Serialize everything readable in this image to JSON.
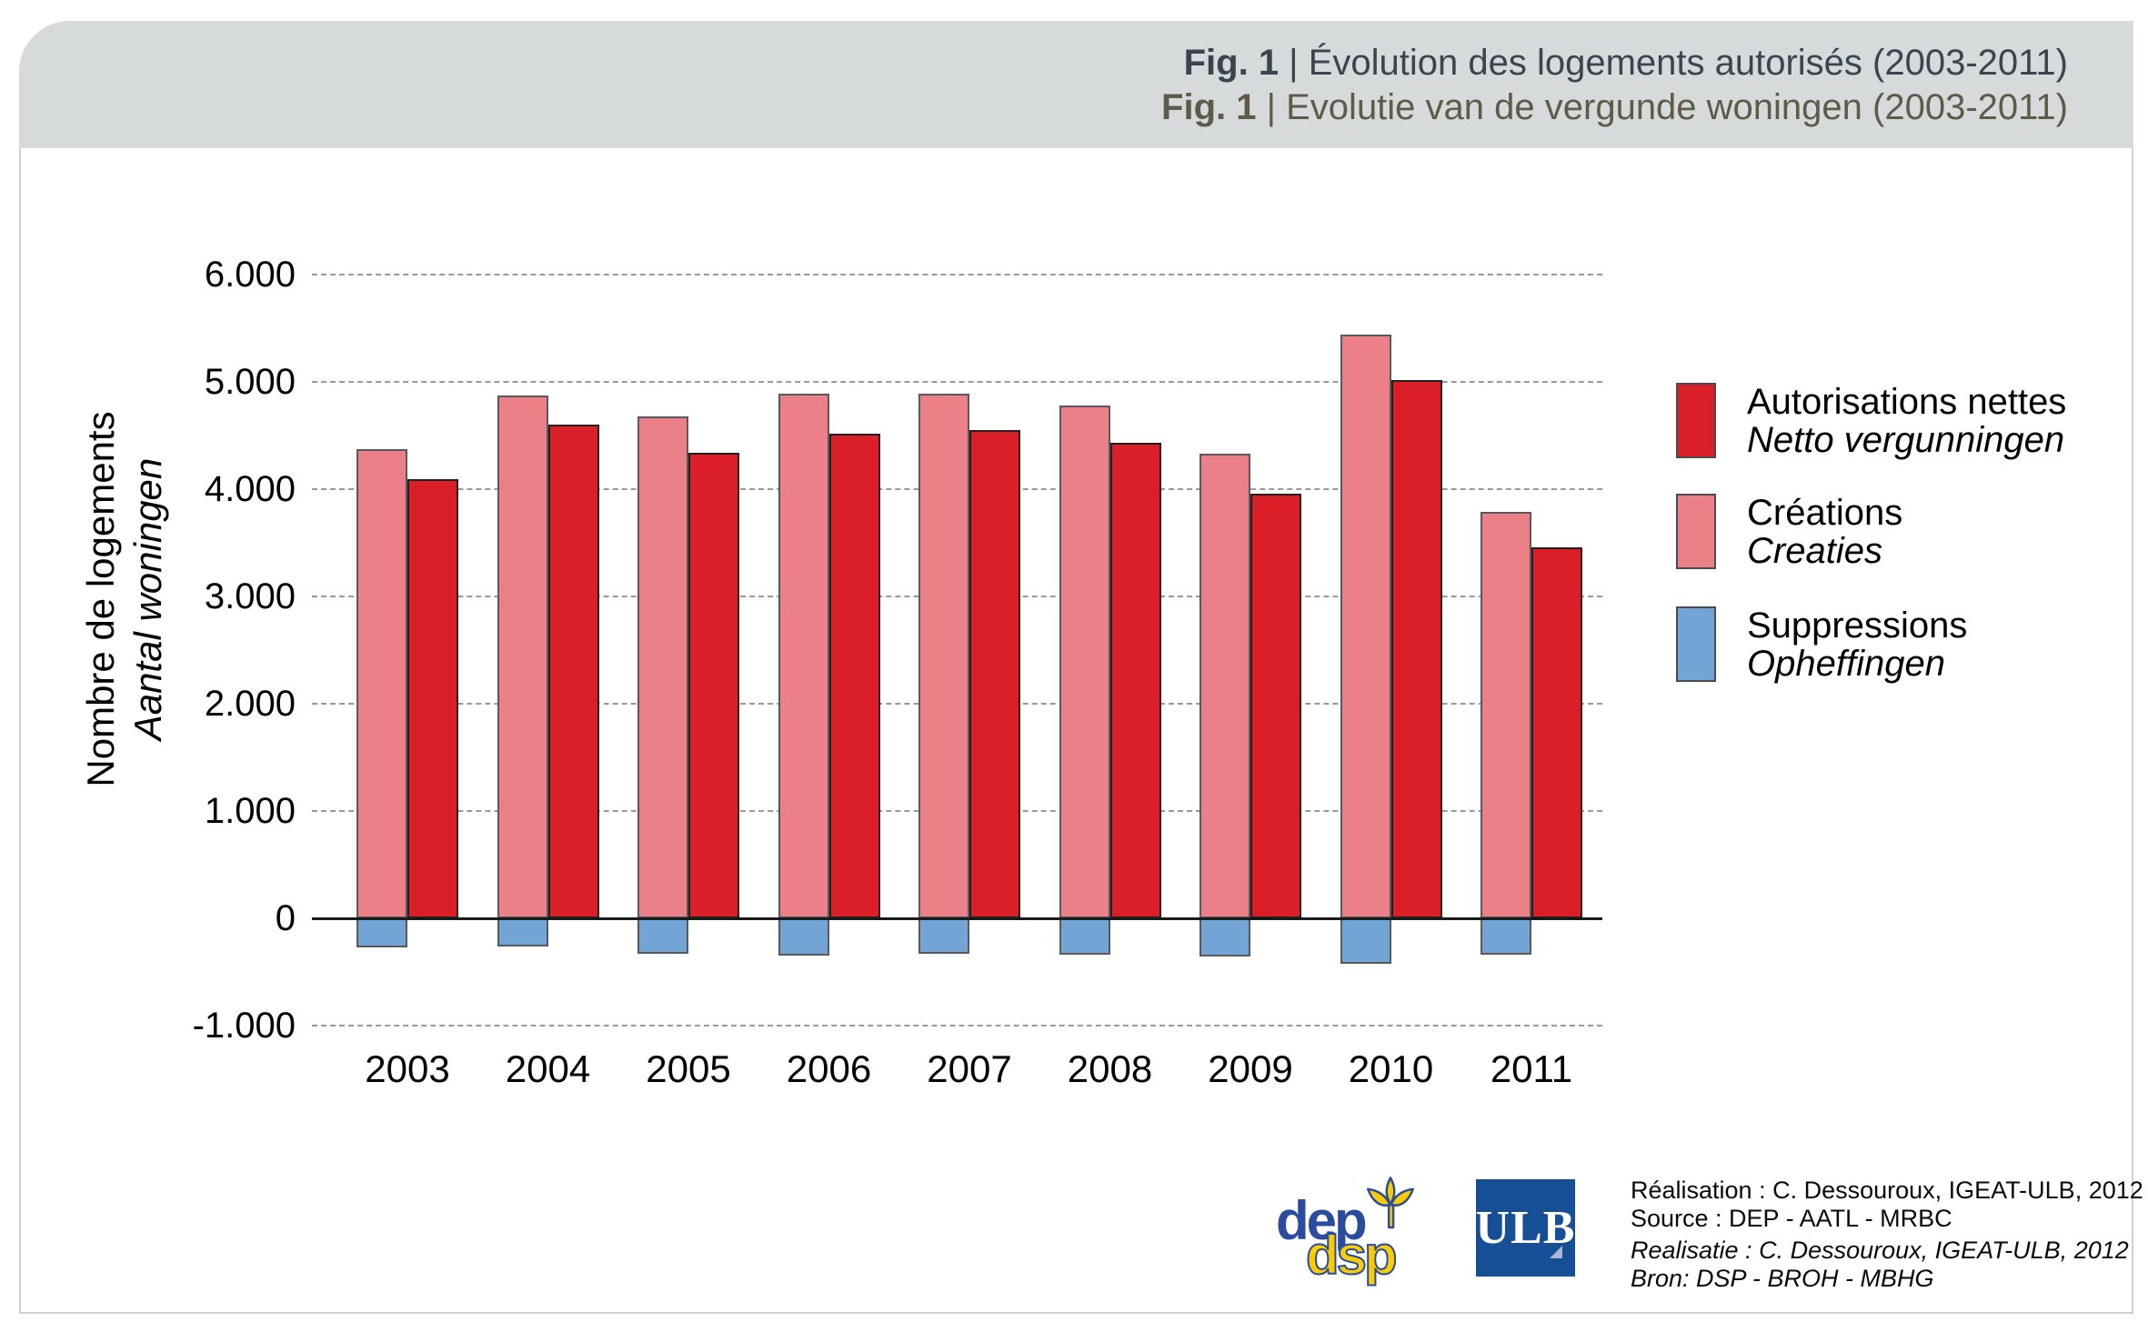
{
  "header": {
    "fig_label": "Fig. 1",
    "divider": " | ",
    "title_fr": "Évolution des logements autorisés (2003-2011)",
    "title_nl": "Evolutie van de vergunde woningen (2003-2011)"
  },
  "y_axis": {
    "title_fr": "Nombre de logements",
    "title_nl": "Aantal woningen",
    "ticks": [
      {
        "label": "6.000",
        "value": 6000
      },
      {
        "label": "5.000",
        "value": 5000
      },
      {
        "label": "4.000",
        "value": 4000
      },
      {
        "label": "3.000",
        "value": 3000
      },
      {
        "label": "2.000",
        "value": 2000
      },
      {
        "label": "1.000",
        "value": 1000
      },
      {
        "label": "0",
        "value": 0
      },
      {
        "label": "-1.000",
        "value": -1000
      }
    ]
  },
  "chart_data": {
    "type": "bar",
    "title_fr": "Évolution des logements autorisés (2003-2011)",
    "title_nl": "Evolutie van de vergunde woningen (2003-2011)",
    "categories": [
      "2003",
      "2004",
      "2005",
      "2006",
      "2007",
      "2008",
      "2009",
      "2010",
      "2011"
    ],
    "series": [
      {
        "name_fr": "Créations",
        "name_nl": "Creaties",
        "color": "#EC8088",
        "outline": "#58595B",
        "values": [
          4370,
          4870,
          4680,
          4890,
          4890,
          4780,
          4330,
          5440,
          3790
        ]
      },
      {
        "name_fr": "Autorisations nettes",
        "name_nl": "Netto vergunningen",
        "color": "#DB1F28",
        "outline": "#231F20",
        "values": [
          4090,
          4600,
          4340,
          4520,
          4550,
          4430,
          3960,
          5020,
          3460
        ]
      },
      {
        "name_fr": "Suppressions",
        "name_nl": "Opheffingen",
        "color": "#72A5D5",
        "outline": "#58595B",
        "values": [
          -270,
          -260,
          -330,
          -350,
          -330,
          -340,
          -360,
          -420,
          -340
        ]
      }
    ],
    "ylabel_fr": "Nombre de logements",
    "ylabel_nl": "Aantal woningen",
    "ylim": [
      -1000,
      6000
    ],
    "grid": "horizontal-dashed",
    "legend_position": "right"
  },
  "legend": {
    "entries": [
      {
        "label_fr": "Autorisations nettes",
        "label_nl": "Netto vergunningen",
        "color": "#DB1F28"
      },
      {
        "label_fr": "Créations",
        "label_nl": "Creaties",
        "color": "#EC8088"
      },
      {
        "label_fr": "Suppressions",
        "label_nl": "Opheffingen",
        "color": "#72A5D5"
      }
    ]
  },
  "footer": {
    "credit_fr_line1": "Réalisation : C. Dessouroux, IGEAT-ULB, 2012",
    "credit_fr_line2": "Source : DEP - AATL - MRBC",
    "credit_nl_line1": "Realisatie : C. Dessouroux, IGEAT-ULB, 2012",
    "credit_nl_line2": "Bron: DSP - BROH - MBHG",
    "dep_logo_line1": "dep",
    "dep_logo_line2": "dsp",
    "ulb_logo": "ULB"
  },
  "colors": {
    "header_band": "#D7DADB",
    "title_fr": "#3A4550",
    "title_nl": "#5E5B48",
    "bar_creations": "#EC8088",
    "bar_autorisations": "#DB1F28",
    "bar_suppressions": "#72A5D5",
    "gridline": "#98999B",
    "axis": "#1A1A1A",
    "dep_logo_blue": "#2B4C9E",
    "dep_logo_yellow": "#F8CC00",
    "ulb_blue": "#174F96"
  }
}
